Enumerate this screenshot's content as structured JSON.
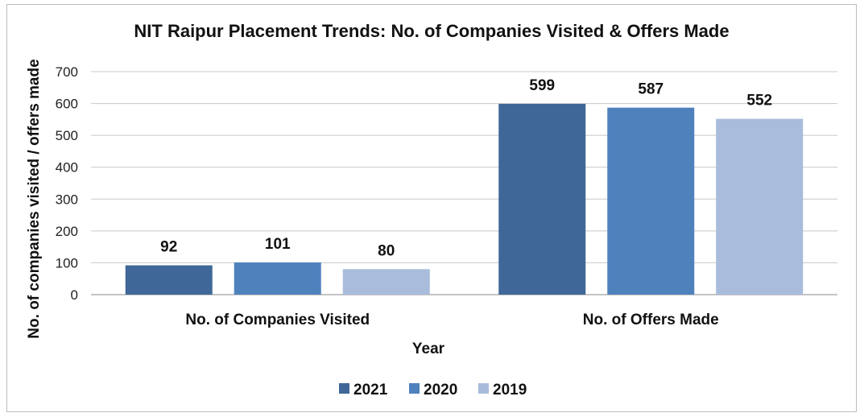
{
  "chart_data": {
    "type": "bar",
    "title": "NIT Raipur Placement Trends: No. of Companies Visited & Offers Made",
    "xlabel": "Year",
    "ylabel": "No. of companies visited / offers made",
    "categories": [
      "No. of Companies Visited",
      "No. of Offers Made"
    ],
    "series": [
      {
        "name": "2021",
        "values": [
          92,
          599
        ],
        "color": "#3f6898"
      },
      {
        "name": "2020",
        "values": [
          101,
          587
        ],
        "color": "#4f81bd"
      },
      {
        "name": "2019",
        "values": [
          80,
          552
        ],
        "color": "#a9bcdb"
      }
    ],
    "ylim": [
      0,
      700
    ],
    "yticks": [
      0,
      100,
      200,
      300,
      400,
      500,
      600,
      700
    ],
    "grid": true,
    "legend": "bottom",
    "data_labels": true
  }
}
